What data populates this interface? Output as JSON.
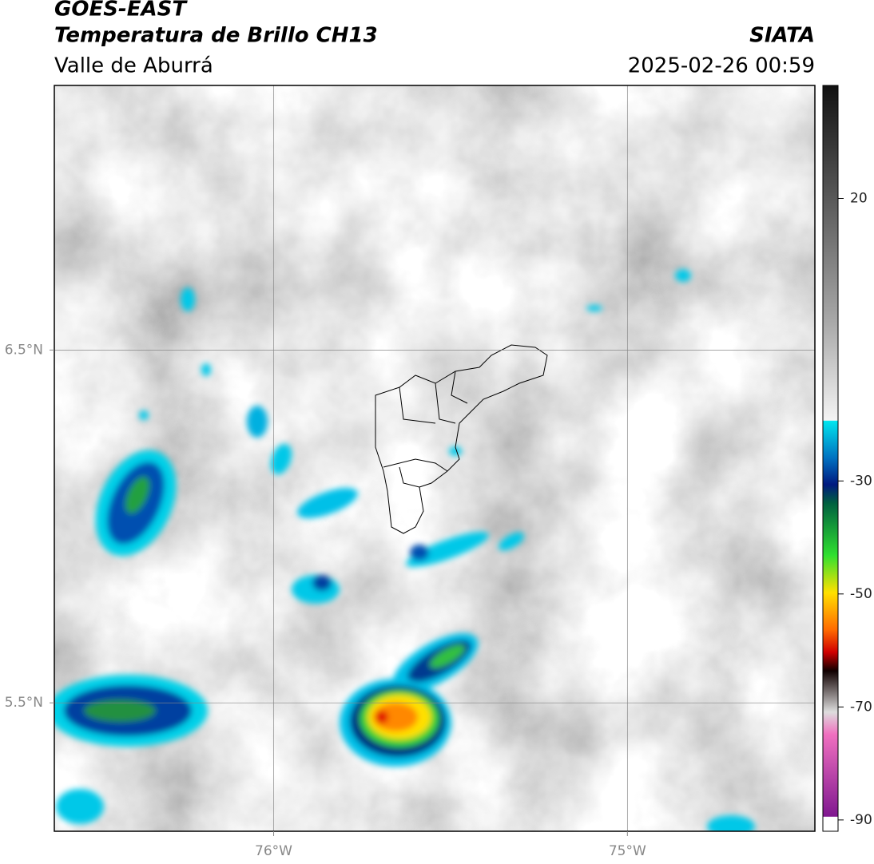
{
  "header": {
    "title": "GOES-EAST",
    "subtitle": "Temperatura de Brillo CH13",
    "region": "Valle de Aburrá",
    "source": "SIATA",
    "datetime": "2025-02-26 00:59"
  },
  "map": {
    "xlim": [
      -76.62,
      -74.47
    ],
    "ylim": [
      5.136,
      7.25
    ],
    "xticks": [
      {
        "value": -76,
        "label": "76°W"
      },
      {
        "value": -75,
        "label": "75°W"
      }
    ],
    "yticks": [
      {
        "value": 6.5,
        "label": "6.5°N"
      },
      {
        "value": 5.5,
        "label": "5.5°N"
      }
    ],
    "grid": true
  },
  "colorbar": {
    "lim": [
      -92,
      40
    ],
    "ticks": [
      20,
      -30,
      -50,
      -70,
      -90
    ]
  }
}
